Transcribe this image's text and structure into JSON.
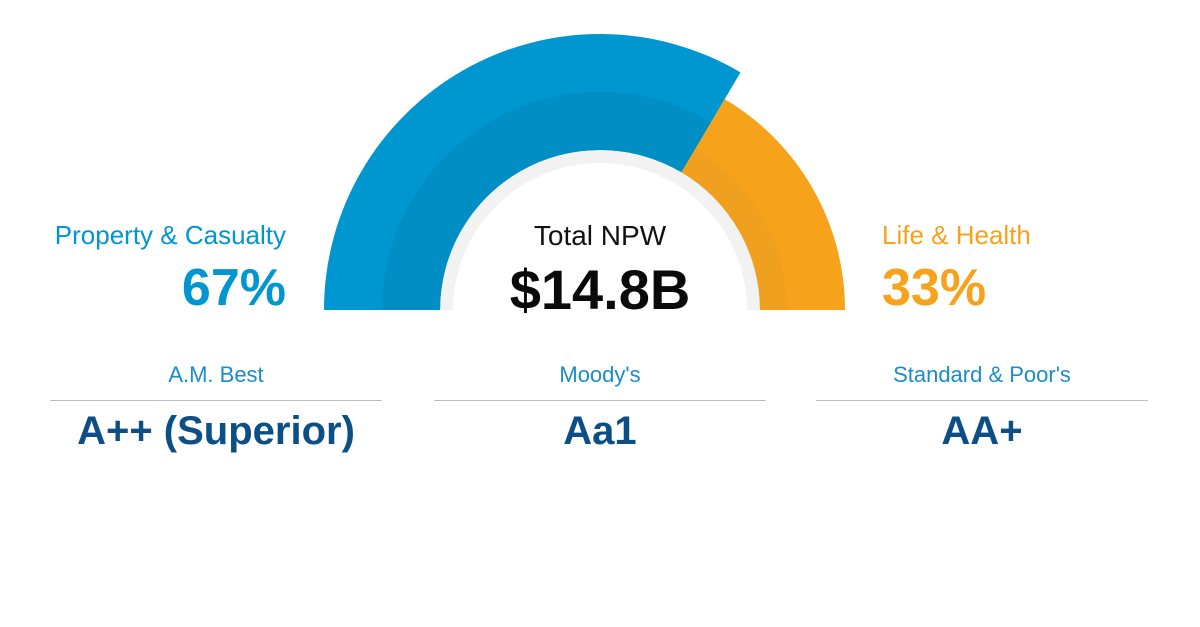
{
  "colors": {
    "pc": "#0096d0",
    "pc_inner": "#008ec5",
    "lh": "#f7a21b",
    "lh_inner": "#efa01f",
    "track": "#f2f2f2",
    "rating_text": "#0b4f86",
    "agency_text": "#1a8ccc"
  },
  "chart_data": {
    "type": "pie",
    "style": "semi-donut",
    "center_label": "Total NPW",
    "center_value": "$14.8B",
    "slices": [
      {
        "name": "Property & Casualty",
        "label": "67%",
        "value": 67
      },
      {
        "name": "Life & Health",
        "label": "33%",
        "value": 33
      }
    ]
  },
  "ratings": [
    {
      "agency": "A.M. Best",
      "rating": "A++ (Superior)"
    },
    {
      "agency": "Moody's",
      "rating": "Aa1"
    },
    {
      "agency": "Standard & Poor's",
      "rating": "AA+"
    }
  ]
}
